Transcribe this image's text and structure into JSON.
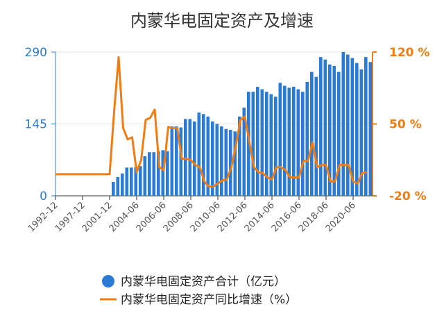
{
  "chart_data": {
    "type": "bar-line",
    "title": "内蒙华电固定资产及增速",
    "categories": [
      "1992-12",
      null,
      null,
      null,
      null,
      null,
      "1997-12",
      null,
      null,
      null,
      null,
      null,
      "2001-12",
      null,
      null,
      null,
      null,
      null,
      "2004-06",
      null,
      null,
      null,
      null,
      null,
      "2006-06",
      null,
      null,
      null,
      null,
      null,
      "2008-06",
      null,
      null,
      null,
      null,
      null,
      "2010-06",
      null,
      null,
      null,
      null,
      null,
      "2012-06",
      null,
      null,
      null,
      null,
      null,
      "2014-06",
      null,
      null,
      null,
      null,
      null,
      "2016-06",
      null,
      null,
      null,
      null,
      null,
      "2018-06",
      null,
      null,
      null,
      null,
      null,
      "2020-06",
      null,
      null,
      null
    ],
    "series": [
      {
        "name": "内蒙华电固定资产合计（亿元）",
        "type": "bar",
        "color": "#2b7bd6",
        "axis": "y",
        "values": [
          null,
          null,
          null,
          null,
          null,
          null,
          null,
          null,
          null,
          null,
          null,
          null,
          28,
          38,
          45,
          57,
          57,
          58,
          60,
          80,
          88,
          88,
          90,
          92,
          90,
          140,
          140,
          138,
          155,
          155,
          150,
          168,
          165,
          160,
          150,
          145,
          140,
          135,
          133,
          130,
          160,
          178,
          210,
          210,
          220,
          215,
          210,
          205,
          200,
          228,
          222,
          218,
          220,
          215,
          210,
          230,
          250,
          240,
          280,
          275,
          265,
          262,
          250,
          290,
          285,
          278,
          268,
          255,
          280,
          270
        ]
      },
      {
        "name": "内蒙华电固定资产同比增速（%）",
        "type": "line",
        "color": "#f07c14",
        "axis": "y2",
        "values": [
          1,
          1,
          1,
          1,
          1,
          1,
          1,
          1,
          1,
          1,
          1,
          1,
          1,
          62,
          115,
          46,
          35,
          37,
          3,
          15,
          54,
          56,
          64,
          8,
          5,
          47,
          46,
          46,
          16,
          16,
          15,
          10,
          8,
          -6,
          -11,
          -11,
          -8,
          -5,
          -4,
          8,
          29,
          54,
          57,
          32,
          8,
          3,
          2,
          -2,
          -4,
          8,
          8,
          5,
          -2,
          -2,
          -2,
          14,
          14,
          32,
          8,
          10,
          10,
          -6,
          -6,
          10,
          10,
          10,
          -6,
          -8,
          2,
          3
        ]
      }
    ],
    "ylim": [
      0,
      290
    ],
    "yticks": [
      0,
      145,
      290
    ],
    "y2lim": [
      -20,
      120
    ],
    "y2ticks": [
      {
        "value": -20,
        "label": "-20 %"
      },
      {
        "value": 50,
        "label": "50 %"
      },
      {
        "value": 120,
        "label": "120 %"
      }
    ],
    "grid": true,
    "legend": "bottom"
  }
}
